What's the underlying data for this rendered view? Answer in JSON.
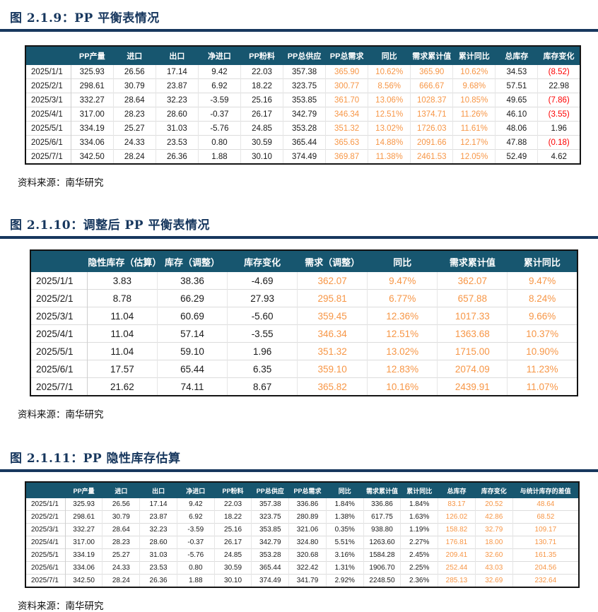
{
  "colors": {
    "header_bg": "#17566f",
    "title_navy": "#17375e",
    "highlight_orange": "#f79646",
    "negative_red": "#fe0000",
    "body_text": "#1a1a1a"
  },
  "figures": [
    {
      "title": "图 2.1.9：PP 平衡表情况",
      "source": "资料来源：南华研究",
      "table": {
        "columns": [
          "",
          "PP产量",
          "进口",
          "出口",
          "净进口",
          "PP粉料",
          "PP总供应",
          "PP总需求",
          "同比",
          "需求累计值",
          "累计同比",
          "总库存",
          "库存变化"
        ],
        "orange_cols": [
          7,
          8,
          9,
          10
        ],
        "rows": [
          [
            "2025/1/1",
            "325.93",
            "26.56",
            "17.14",
            "9.42",
            "22.03",
            "357.38",
            "365.90",
            "10.62%",
            "365.90",
            "10.62%",
            "34.53",
            "(8.52)"
          ],
          [
            "2025/2/1",
            "298.61",
            "30.79",
            "23.87",
            "6.92",
            "18.22",
            "323.75",
            "300.77",
            "8.56%",
            "666.67",
            "9.68%",
            "57.51",
            "22.98"
          ],
          [
            "2025/3/1",
            "332.27",
            "28.64",
            "32.23",
            "-3.59",
            "25.16",
            "353.85",
            "361.70",
            "13.06%",
            "1028.37",
            "10.85%",
            "49.65",
            "(7.86)"
          ],
          [
            "2025/4/1",
            "317.00",
            "28.23",
            "28.60",
            "-0.37",
            "26.17",
            "342.79",
            "346.34",
            "12.51%",
            "1374.71",
            "11.26%",
            "46.10",
            "(3.55)"
          ],
          [
            "2025/5/1",
            "334.19",
            "25.27",
            "31.03",
            "-5.76",
            "24.85",
            "353.28",
            "351.32",
            "13.02%",
            "1726.03",
            "11.61%",
            "48.06",
            "1.96"
          ],
          [
            "2025/6/1",
            "334.06",
            "24.33",
            "23.53",
            "0.80",
            "30.59",
            "365.44",
            "365.63",
            "14.88%",
            "2091.66",
            "12.17%",
            "47.88",
            "(0.18)"
          ],
          [
            "2025/7/1",
            "342.50",
            "28.24",
            "26.36",
            "1.88",
            "30.10",
            "374.49",
            "369.87",
            "11.38%",
            "2461.53",
            "12.05%",
            "52.49",
            "4.62"
          ]
        ]
      }
    },
    {
      "title": "图 2.1.10：调整后 PP 平衡表情况",
      "source": "资料来源：南华研究",
      "table": {
        "columns": [
          "",
          "隐性库存（估算）",
          "库存（调整）",
          "库存变化",
          "需求（调整）",
          "同比",
          "需求累计值",
          "累计同比"
        ],
        "orange_cols": [
          4,
          5,
          6,
          7
        ],
        "rows": [
          [
            "2025/1/1",
            "3.83",
            "38.36",
            "-4.69",
            "362.07",
            "9.47%",
            "362.07",
            "9.47%"
          ],
          [
            "2025/2/1",
            "8.78",
            "66.29",
            "27.93",
            "295.81",
            "6.77%",
            "657.88",
            "8.24%"
          ],
          [
            "2025/3/1",
            "11.04",
            "60.69",
            "-5.60",
            "359.45",
            "12.36%",
            "1017.33",
            "9.66%"
          ],
          [
            "2025/4/1",
            "11.04",
            "57.14",
            "-3.55",
            "346.34",
            "12.51%",
            "1363.68",
            "10.37%"
          ],
          [
            "2025/5/1",
            "11.04",
            "59.10",
            "1.96",
            "351.32",
            "13.02%",
            "1715.00",
            "10.90%"
          ],
          [
            "2025/6/1",
            "17.57",
            "65.44",
            "6.35",
            "359.10",
            "12.83%",
            "2074.09",
            "11.23%"
          ],
          [
            "2025/7/1",
            "21.62",
            "74.11",
            "8.67",
            "365.82",
            "10.16%",
            "2439.91",
            "11.07%"
          ]
        ]
      }
    },
    {
      "title": "图 2.1.11：PP 隐性库存估算",
      "source": "资料来源：南华研究",
      "table": {
        "columns": [
          "",
          "PP产量",
          "进口",
          "出口",
          "净进口",
          "PP粉料",
          "PP总供应",
          "PP总需求",
          "同比",
          "需求累计值",
          "累计同比",
          "总库存",
          "库存变化",
          "与统计库存的差值"
        ],
        "orange_cols": [
          11,
          12,
          13
        ],
        "rows": [
          [
            "2025/1/1",
            "325.93",
            "26.56",
            "17.14",
            "9.42",
            "22.03",
            "357.38",
            "336.86",
            "1.84%",
            "336.86",
            "1.84%",
            "83.17",
            "20.52",
            "48.64"
          ],
          [
            "2025/2/1",
            "298.61",
            "30.79",
            "23.87",
            "6.92",
            "18.22",
            "323.75",
            "280.89",
            "1.38%",
            "617.75",
            "1.63%",
            "126.02",
            "42.86",
            "68.52"
          ],
          [
            "2025/3/1",
            "332.27",
            "28.64",
            "32.23",
            "-3.59",
            "25.16",
            "353.85",
            "321.06",
            "0.35%",
            "938.80",
            "1.19%",
            "158.82",
            "32.79",
            "109.17"
          ],
          [
            "2025/4/1",
            "317.00",
            "28.23",
            "28.60",
            "-0.37",
            "26.17",
            "342.79",
            "324.80",
            "5.51%",
            "1263.60",
            "2.27%",
            "176.81",
            "18.00",
            "130.71"
          ],
          [
            "2025/5/1",
            "334.19",
            "25.27",
            "31.03",
            "-5.76",
            "24.85",
            "353.28",
            "320.68",
            "3.16%",
            "1584.28",
            "2.45%",
            "209.41",
            "32.60",
            "161.35"
          ],
          [
            "2025/6/1",
            "334.06",
            "24.33",
            "23.53",
            "0.80",
            "30.59",
            "365.44",
            "322.42",
            "1.31%",
            "1906.70",
            "2.25%",
            "252.44",
            "43.03",
            "204.56"
          ],
          [
            "2025/7/1",
            "342.50",
            "28.24",
            "26.36",
            "1.88",
            "30.10",
            "374.49",
            "341.79",
            "2.92%",
            "2248.50",
            "2.36%",
            "285.13",
            "32.69",
            "232.64"
          ]
        ]
      }
    }
  ]
}
